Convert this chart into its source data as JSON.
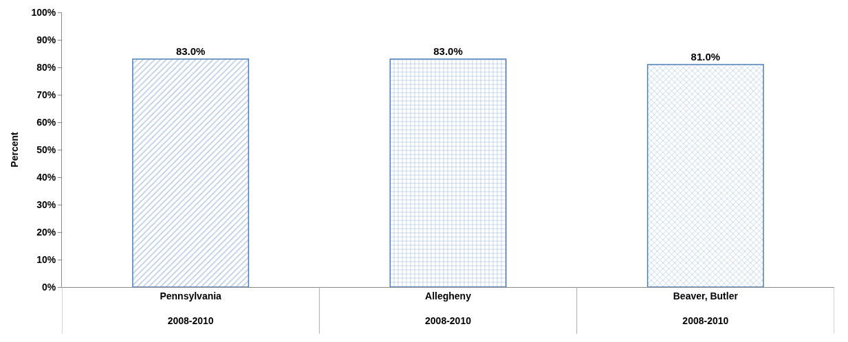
{
  "chart_data": {
    "type": "bar",
    "ylabel": "Percent",
    "categories": [
      "Pennsylvania\n2008-2010",
      "Allegheny\n2008-2010",
      "Beaver, Butler\n2008-2010"
    ],
    "values": [
      83.0,
      83.0,
      81.0
    ],
    "color": "#4a7ebb",
    "value_labels": [
      "83.0%",
      "83.0%",
      "81.0%"
    ],
    "ylim": [
      0,
      100
    ],
    "yticks": [
      {
        "value": 0,
        "label": "0%"
      },
      {
        "value": 10,
        "label": "10%"
      },
      {
        "value": 20,
        "label": "20%"
      },
      {
        "value": 30,
        "label": "30%"
      },
      {
        "value": 40,
        "label": "40%"
      },
      {
        "value": 50,
        "label": "50%"
      },
      {
        "value": 60,
        "label": "60%"
      },
      {
        "value": 70,
        "label": "70%"
      },
      {
        "value": 80,
        "label": "80%"
      },
      {
        "value": 90,
        "label": "90%"
      },
      {
        "value": 100,
        "label": "100%"
      }
    ],
    "legend": false
  }
}
